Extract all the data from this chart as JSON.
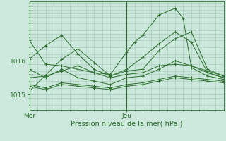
{
  "bg_color": "#cce8dc",
  "grid_color": "#a0c8b8",
  "line_color": "#2d6e2d",
  "marker_color": "#2d6e2d",
  "xlabel": "Pression niveau de la mer( hPa )",
  "xlabel_color": "#2d6e2d",
  "tick_color": "#2d6e2d",
  "ytick_labels": [
    "1015",
    "1016"
  ],
  "ytick_values": [
    1015.0,
    1016.0
  ],
  "ylim": [
    1014.55,
    1017.75
  ],
  "xlim": [
    0,
    48
  ],
  "x_mer": 0,
  "x_jeu": 24,
  "series": [
    [
      0,
      1016.05,
      4,
      1016.45,
      8,
      1016.75,
      12,
      1016.2,
      16,
      1015.75,
      20,
      1015.55,
      24,
      1015.7,
      28,
      1015.75,
      32,
      1016.3,
      36,
      1016.65,
      40,
      1016.85,
      44,
      1015.75,
      48,
      1015.55
    ],
    [
      0,
      1015.75,
      4,
      1015.5,
      8,
      1015.75,
      12,
      1015.5,
      16,
      1015.4,
      20,
      1015.3,
      24,
      1015.5,
      28,
      1015.55,
      32,
      1015.75,
      36,
      1016.0,
      40,
      1015.85,
      44,
      1015.65,
      48,
      1015.5
    ],
    [
      0,
      1015.3,
      4,
      1015.2,
      8,
      1015.35,
      12,
      1015.3,
      16,
      1015.25,
      20,
      1015.2,
      24,
      1015.3,
      28,
      1015.35,
      32,
      1015.45,
      36,
      1015.55,
      40,
      1015.5,
      44,
      1015.45,
      48,
      1015.4
    ],
    [
      0,
      1015.25,
      4,
      1015.15,
      8,
      1015.3,
      12,
      1015.25,
      16,
      1015.2,
      20,
      1015.15,
      24,
      1015.25,
      28,
      1015.3,
      32,
      1015.4,
      36,
      1015.5,
      40,
      1015.45,
      44,
      1015.4,
      48,
      1015.35
    ],
    [
      0,
      1016.6,
      4,
      1015.9,
      8,
      1015.85,
      12,
      1015.75,
      16,
      1015.65,
      20,
      1015.6,
      24,
      1016.25,
      26,
      1016.55,
      28,
      1016.75,
      32,
      1017.35,
      36,
      1017.55,
      38,
      1017.25,
      40,
      1015.8,
      44,
      1015.55,
      48,
      1015.45
    ],
    [
      0,
      1015.5,
      4,
      1015.55,
      8,
      1015.7,
      12,
      1015.85,
      16,
      1015.65,
      20,
      1015.5,
      24,
      1015.6,
      28,
      1015.65,
      32,
      1015.85,
      36,
      1015.9,
      40,
      1015.85,
      44,
      1015.7,
      48,
      1015.55
    ],
    [
      0,
      1015.1,
      8,
      1016.05,
      12,
      1016.35,
      16,
      1015.95,
      20,
      1015.55,
      24,
      1015.75,
      28,
      1016.1,
      32,
      1016.5,
      36,
      1016.85,
      40,
      1016.55,
      44,
      1015.65,
      48,
      1015.5
    ]
  ],
  "figsize": [
    3.2,
    2.0
  ],
  "dpi": 100
}
